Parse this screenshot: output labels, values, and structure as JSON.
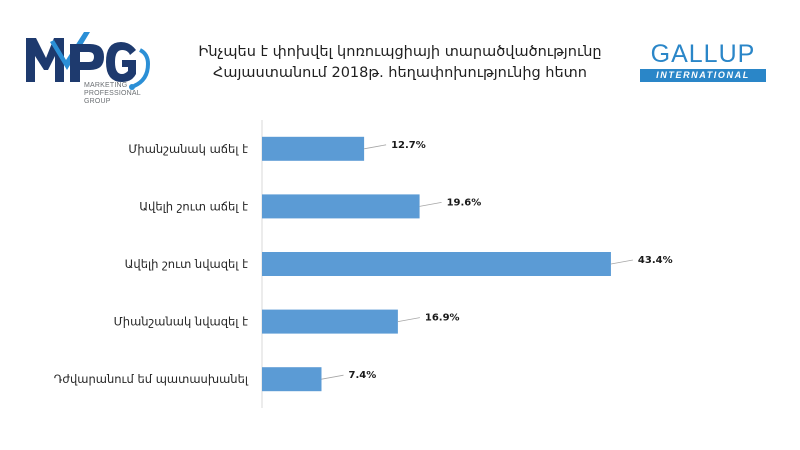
{
  "title": {
    "line1": "Ինչպես է փոխվել կոռուպցիայի տարածվածությունը",
    "line2": "Հայաստանում 2018թ. հեղափոխությունից հետո"
  },
  "logos": {
    "mpg": {
      "mark": "MPG",
      "caption": [
        "MARKETING",
        "PROFESSIONAL",
        "GROUP"
      ],
      "colors": {
        "navy": "#1e3a6e",
        "blue": "#2b8fd6"
      }
    },
    "gallup": {
      "word": "GALLUP",
      "sub": "INTERNATIONAL",
      "color": "#2a86c8"
    }
  },
  "chart_data": {
    "type": "bar",
    "orientation": "horizontal",
    "categories": [
      "Միանշանակ աճել է",
      "Ավելի շուտ աճել է",
      "Ավելի շուտ նվազել է",
      "Միանշանակ նվազել է",
      "Դժվարանում եմ պատասխանել"
    ],
    "values": [
      12.7,
      19.6,
      43.4,
      16.9,
      7.4
    ],
    "value_labels": [
      "12.7%",
      "19.6%",
      "43.4%",
      "16.9%",
      "7.4%"
    ],
    "unit": "%",
    "xlim": [
      0,
      50
    ],
    "bar_color": "#5b9bd5",
    "grid": false,
    "legend": "none"
  }
}
